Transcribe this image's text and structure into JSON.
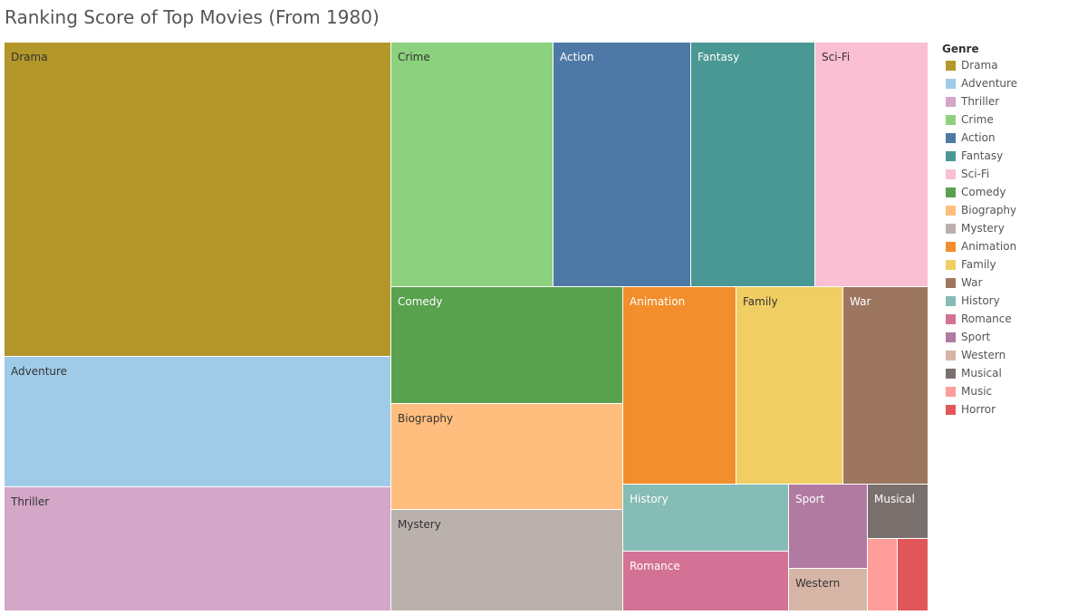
{
  "chart_data": {
    "type": "treemap",
    "title": "Ranking Score of Top Movies (From 1980)",
    "legend_title": "Genre",
    "legend_position": "right",
    "categories": [
      "Drama",
      "Adventure",
      "Thriller",
      "Crime",
      "Action",
      "Fantasy",
      "Sci-Fi",
      "Comedy",
      "Biography",
      "Mystery",
      "Animation",
      "Family",
      "War",
      "History",
      "Romance",
      "Sport",
      "Western",
      "Musical",
      "Music",
      "Horror"
    ],
    "values": [
      22.9,
      10.0,
      10.0,
      7.7,
      6.6,
      5.9,
      5.4,
      5.3,
      4.8,
      4.6,
      4.0,
      3.8,
      3.2,
      2.1,
      2.1,
      1.7,
      0.9,
      1.0,
      0.7,
      0.6
    ],
    "colors": [
      "#b3972b",
      "#a0cbe8",
      "#d4a6c8",
      "#8cd17d",
      "#4e79a7",
      "#499894",
      "#fabfd2",
      "#59a14f",
      "#ffbe7d",
      "#bab0ac",
      "#f28e2b",
      "#f1ce63",
      "#9d7660",
      "#86bcb6",
      "#d37295",
      "#b07aa1",
      "#d7b5a6",
      "#79706e",
      "#ff9d9a",
      "#e15759"
    ]
  }
}
